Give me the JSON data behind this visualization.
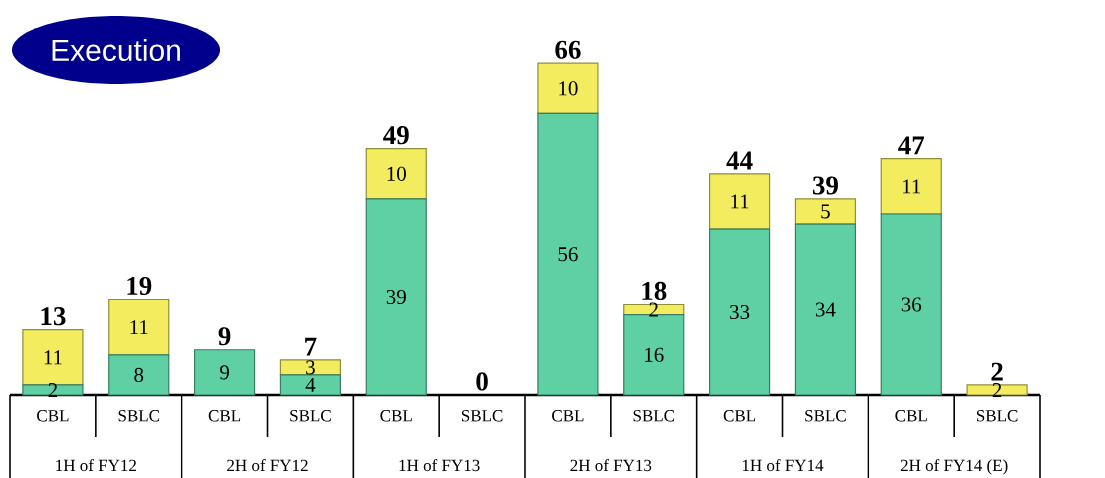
{
  "chart_data": {
    "type": "bar",
    "title": "Execution",
    "stacked": true,
    "categories": [
      "CBL",
      "SBLC",
      "CBL",
      "SBLC",
      "CBL",
      "SBLC",
      "CBL",
      "SBLC",
      "CBL",
      "SBLC",
      "CBL",
      "SBLC"
    ],
    "series": [
      {
        "color": "#5fd0a3",
        "values": [
          2,
          8,
          9,
          4,
          39,
          0,
          56,
          16,
          33,
          34,
          36,
          0
        ],
        "value_labels": [
          "2",
          "8",
          "9",
          "4",
          "39",
          null,
          "56",
          "16",
          "33",
          "34",
          "36",
          null
        ]
      },
      {
        "color": "#f2ec5e",
        "values": [
          11,
          11,
          0,
          3,
          10,
          0,
          10,
          2,
          11,
          5,
          11,
          2
        ],
        "value_labels": [
          "11",
          "11",
          null,
          "3",
          "10",
          null,
          "10",
          "2",
          "11",
          "5",
          "11",
          "2"
        ]
      }
    ],
    "totals": [
      "13",
      "19",
      "9",
      "7",
      "49",
      "0",
      "66",
      "18",
      "44",
      "39",
      "47",
      "2"
    ],
    "annotations": [
      "1H of FY12",
      "2H of FY12",
      "1H of FY13",
      "2H of FY13",
      "1H of FY14",
      "2H of FY14 (E)"
    ]
  }
}
